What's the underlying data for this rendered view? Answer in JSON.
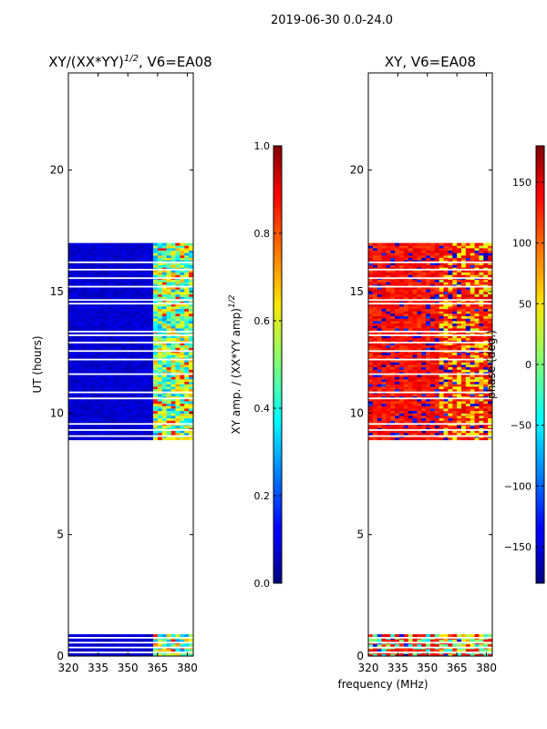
{
  "figure": {
    "suptitle": "2019-06-30 0.0-24.0",
    "colormap": "jet"
  },
  "chart_data": [
    {
      "type": "heatmap",
      "title_main": "XY/(XX*YY)",
      "title_exp": "1/2",
      "title_suffix": ", V6=EA08",
      "xlabel": "",
      "ylabel": "UT (hours)",
      "xlim": [
        320,
        383
      ],
      "ylim": [
        0,
        24
      ],
      "x_ticks": [
        "320",
        "335",
        "350",
        "365",
        "380"
      ],
      "x_tick_values": [
        320,
        335,
        350,
        365,
        380
      ],
      "y_ticks": [
        "0",
        "5",
        "10",
        "15",
        "20"
      ],
      "y_tick_values": [
        0,
        5,
        10,
        15,
        20
      ],
      "data_blocks_hours": [
        [
          0.0,
          0.9
        ],
        [
          8.9,
          17.0
        ]
      ],
      "gap_lines_hours": [
        0.15,
        0.35,
        0.55,
        0.75,
        9.05,
        9.3,
        9.55,
        10.6,
        10.85,
        11.6,
        12.2,
        12.55,
        12.9,
        13.2,
        13.35,
        14.5,
        14.65,
        15.2,
        15.55,
        15.9,
        16.2
      ],
      "typical_value_low_band": 0.05,
      "typical_value_high_band": 0.5,
      "high_band_start_mhz": 363,
      "colorbar": {
        "label_main": "XY amp. / (XX*YY amp)",
        "label_exp": "1/2",
        "vmin": 0.0,
        "vmax": 1.0,
        "ticks": [
          "0.0",
          "0.2",
          "0.4",
          "0.6",
          "0.8",
          "1.0"
        ],
        "tick_values": [
          0.0,
          0.2,
          0.4,
          0.6,
          0.8,
          1.0
        ]
      }
    },
    {
      "type": "heatmap",
      "title_main": "XY, V6=EA08",
      "xlabel": "frequency (MHz)",
      "ylabel": "",
      "xlim": [
        320,
        383
      ],
      "ylim": [
        0,
        24
      ],
      "x_ticks": [
        "320",
        "335",
        "350",
        "365",
        "380"
      ],
      "x_tick_values": [
        320,
        335,
        350,
        365,
        380
      ],
      "y_ticks": [
        "0",
        "5",
        "10",
        "15",
        "20"
      ],
      "y_tick_values": [
        0,
        5,
        10,
        15,
        20
      ],
      "data_blocks_hours": [
        [
          0.0,
          0.9
        ],
        [
          8.9,
          17.0
        ]
      ],
      "gap_lines_hours": [
        0.15,
        0.35,
        0.55,
        0.75,
        9.05,
        9.3,
        9.55,
        10.6,
        10.85,
        11.6,
        12.2,
        12.55,
        12.9,
        13.2,
        13.35,
        14.5,
        14.65,
        15.2,
        15.55,
        15.9,
        16.2
      ],
      "typical_value_deg": 130,
      "colorbar": {
        "label_main": "phase (deg.)",
        "vmin": -180,
        "vmax": 180,
        "ticks": [
          "−150",
          "−100",
          "−50",
          "0",
          "50",
          "100",
          "150"
        ],
        "tick_values": [
          -150,
          -100,
          -50,
          0,
          50,
          100,
          150
        ]
      }
    }
  ]
}
